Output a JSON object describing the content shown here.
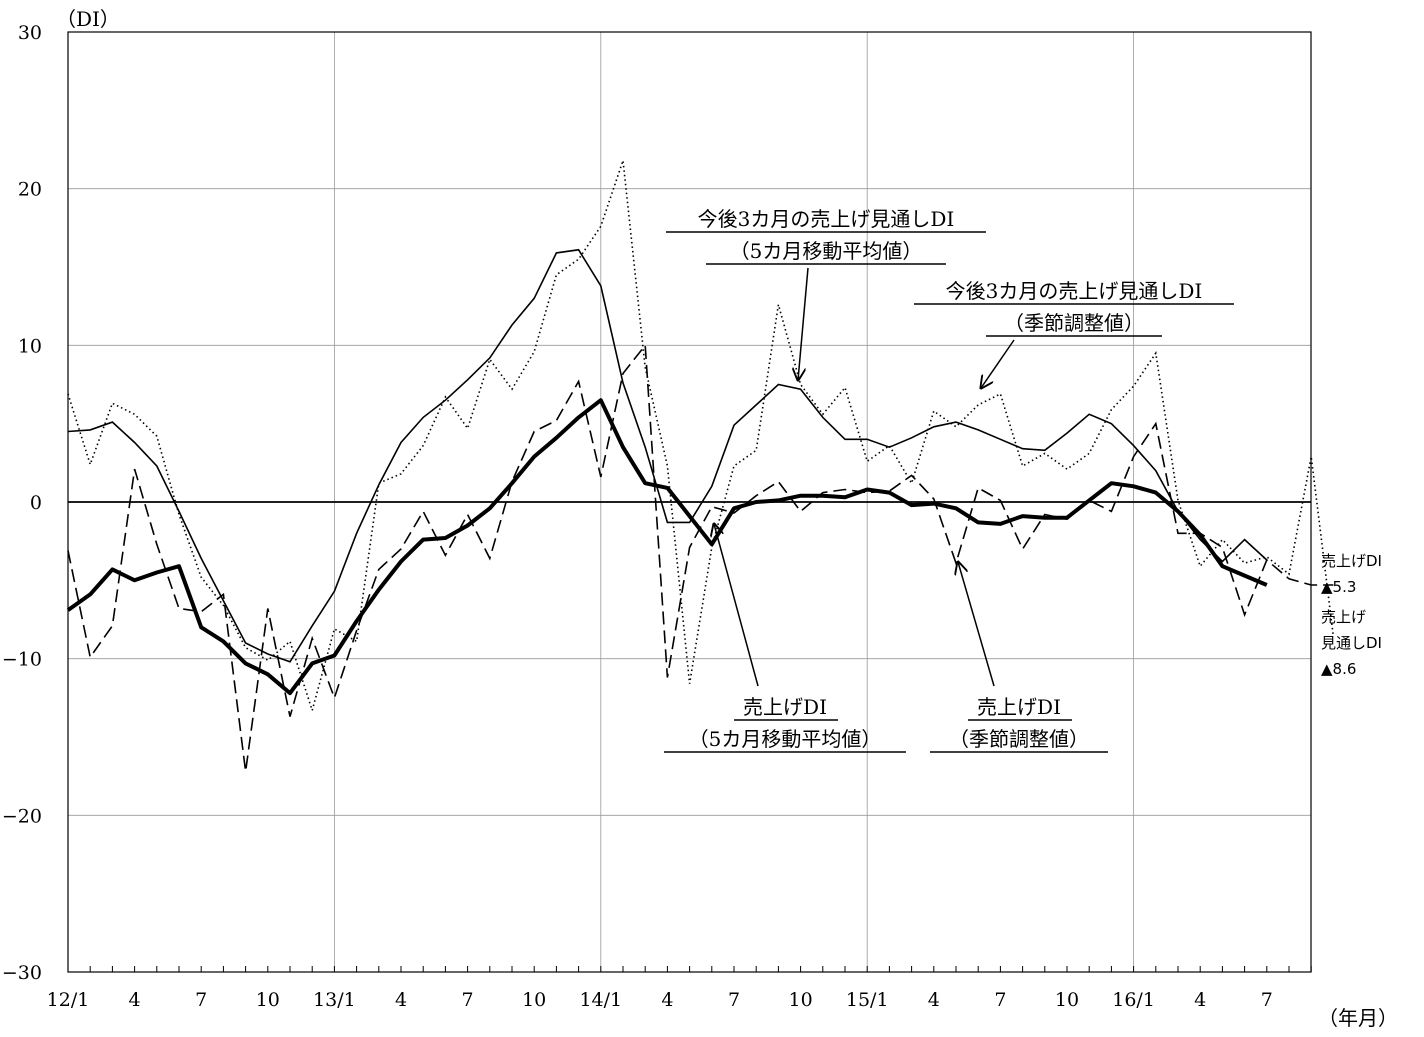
{
  "chart_data": {
    "type": "line",
    "y_unit_label": "（DI）",
    "x_unit_label": "（年月）",
    "ylim": [
      -30,
      30
    ],
    "y_ticks": [
      30,
      20,
      10,
      0,
      -10,
      -20,
      -30
    ],
    "y_tick_labels": [
      "30",
      "20",
      "10",
      "0",
      "−10",
      "−20",
      "−30"
    ],
    "grid": true,
    "x_tick_labels": [
      {
        "index": 0,
        "label": "12/1"
      },
      {
        "index": 3,
        "label": "4"
      },
      {
        "index": 6,
        "label": "7"
      },
      {
        "index": 9,
        "label": "10"
      },
      {
        "index": 12,
        "label": "13/1"
      },
      {
        "index": 15,
        "label": "4"
      },
      {
        "index": 18,
        "label": "7"
      },
      {
        "index": 21,
        "label": "10"
      },
      {
        "index": 24,
        "label": "14/1"
      },
      {
        "index": 27,
        "label": "4"
      },
      {
        "index": 30,
        "label": "7"
      },
      {
        "index": 33,
        "label": "10"
      },
      {
        "index": 36,
        "label": "15/1"
      },
      {
        "index": 39,
        "label": "4"
      },
      {
        "index": 42,
        "label": "7"
      },
      {
        "index": 45,
        "label": "10"
      },
      {
        "index": 48,
        "label": "16/1"
      },
      {
        "index": 51,
        "label": "4"
      },
      {
        "index": 54,
        "label": "7"
      }
    ],
    "series": [
      {
        "key": "outlook_ma",
        "name": "今後3カ月の売上げ見通しDI（5カ月移動平均値）",
        "style": "thin-solid",
        "start_index": 0,
        "values": [
          4.5,
          4.6,
          5.1,
          3.8,
          2.3,
          -0.6,
          -3.6,
          -6.3,
          -9.0,
          -9.7,
          -10.2,
          -7.9,
          -5.7,
          -2.0,
          1.1,
          3.8,
          5.4,
          6.5,
          7.8,
          9.2,
          11.3,
          13.0,
          15.9,
          16.1,
          13.8,
          7.6,
          3.5,
          -1.3,
          -1.3,
          1.0,
          4.9,
          6.2,
          7.5,
          7.2,
          5.4,
          4.0,
          4.0,
          3.5,
          4.1,
          4.8,
          5.1,
          4.6,
          4.0,
          3.4,
          3.3,
          4.4,
          5.6,
          5.0,
          3.6,
          2.0,
          -0.6,
          -2.4,
          -3.8,
          -2.4,
          -3.7
        ]
      },
      {
        "key": "outlook_sa",
        "name": "今後3カ月の売上げ見通しDI（季節調整値）",
        "style": "dotted",
        "start_index": 0,
        "values": [
          6.9,
          2.4,
          6.3,
          5.6,
          4.2,
          -0.8,
          -4.8,
          -6.6,
          -9.3,
          -10.1,
          -8.9,
          -13.3,
          -8.1,
          -8.9,
          1.2,
          1.8,
          3.6,
          6.7,
          4.7,
          9.1,
          7.2,
          9.6,
          14.5,
          15.5,
          17.6,
          21.8,
          8.6,
          2.3,
          -11.6,
          -2.9,
          2.3,
          3.3,
          12.6,
          7.5,
          5.6,
          7.3,
          2.6,
          3.6,
          1.2,
          5.8,
          4.8,
          6.2,
          6.9,
          2.3,
          3.1,
          2.1,
          3.1,
          5.9,
          7.4,
          9.5,
          0.1,
          -4.1,
          -2.4,
          -3.9,
          -3.5,
          -4.6,
          2.9,
          -8.6
        ]
      },
      {
        "key": "sales_ma",
        "name": "売上げDI（5カ月移動平均値）",
        "style": "thick-solid",
        "start_index": 0,
        "values": [
          -6.9,
          -5.9,
          -4.3,
          -5.0,
          -4.5,
          -4.1,
          -8.0,
          -8.9,
          -10.3,
          -11.0,
          -12.2,
          -10.3,
          -9.8,
          -7.6,
          -5.6,
          -3.8,
          -2.4,
          -2.3,
          -1.5,
          -0.4,
          1.2,
          2.9,
          4.1,
          5.4,
          6.5,
          3.5,
          1.2,
          0.9,
          -0.9,
          -2.7,
          -0.4,
          0.0,
          0.1,
          0.4,
          0.4,
          0.3,
          0.8,
          0.6,
          -0.2,
          -0.1,
          -0.4,
          -1.3,
          -1.4,
          -0.9,
          -1.0,
          -1.0,
          0.1,
          1.2,
          1.0,
          0.6,
          -0.6,
          -2.1,
          -4.1,
          -4.7,
          -5.3
        ]
      },
      {
        "key": "sales_sa",
        "name": "売上げDI（季節調整値）",
        "style": "dashed",
        "start_index": 0,
        "values": [
          -3.1,
          -9.9,
          -7.9,
          2.1,
          -2.7,
          -6.8,
          -7.0,
          -5.9,
          -17.2,
          -6.8,
          -13.7,
          -8.7,
          -12.5,
          -8.2,
          -4.3,
          -3.0,
          -0.6,
          -3.4,
          -0.8,
          -3.6,
          1.3,
          4.5,
          5.2,
          7.7,
          1.6,
          8.2,
          10.0,
          -11.2,
          -2.9,
          -0.3,
          -0.7,
          0.4,
          1.3,
          -0.6,
          0.6,
          0.8,
          0.6,
          0.7,
          1.7,
          0.2,
          -3.9,
          0.9,
          0.1,
          -3.0,
          -0.8,
          -1.1,
          0.1,
          -0.6,
          2.9,
          5.0,
          -2.0,
          -2.0,
          -2.9,
          -7.2,
          -3.7,
          -4.9,
          -5.3,
          -5.3
        ]
      }
    ],
    "annotations": {
      "outlook_ma": {
        "line1": "今後3カ月の売上げ見通しDI",
        "line2": "（5カ月移動平均値）"
      },
      "outlook_sa": {
        "line1": "今後3カ月の売上げ見通しDI",
        "line2": "（季節調整値）"
      },
      "sales_ma": {
        "line1": "売上げDI",
        "line2": "（5カ月移動平均値）"
      },
      "sales_sa": {
        "line1": "売上げDI",
        "line2": "（季節調整値）"
      }
    },
    "end_labels": {
      "sales_title": "売上げDI",
      "sales_value": "▲5.3",
      "outlook_title_1": "売上げ",
      "outlook_title_2": "見通しDI",
      "outlook_value": "▲8.6"
    }
  }
}
